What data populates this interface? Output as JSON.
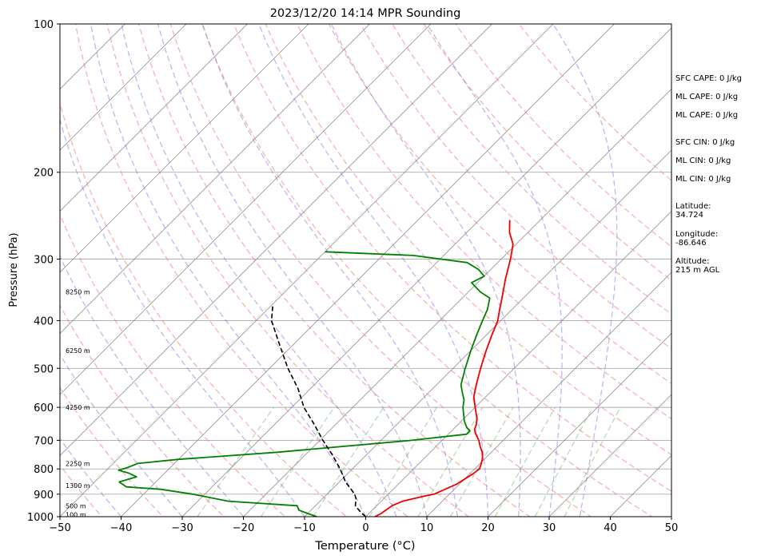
{
  "chart_data": {
    "type": "skew-t",
    "title": "2023/12/20 14:14 MPR Sounding",
    "xlabel": "Temperature (°C)",
    "ylabel": "Pressure (hPa)",
    "xlim": [
      -50,
      50
    ],
    "ylim": [
      1000,
      100
    ],
    "y_scale": "log",
    "grid": true,
    "x_ticks": [
      "−50",
      "−40",
      "−30",
      "−20",
      "−10",
      "0",
      "10",
      "20",
      "30",
      "40",
      "50"
    ],
    "y_ticks": [
      "100",
      "200",
      "300",
      "400",
      "500",
      "600",
      "700",
      "800",
      "900",
      "1000"
    ],
    "height_labels": [
      {
        "p": 350,
        "text": "8250 m"
      },
      {
        "p": 460,
        "text": "6250 m"
      },
      {
        "p": 600,
        "text": "4250 m"
      },
      {
        "p": 780,
        "text": "2250 m"
      },
      {
        "p": 865,
        "text": "1300 m"
      },
      {
        "p": 950,
        "text": "500 m"
      },
      {
        "p": 990,
        "text": "100 m"
      }
    ],
    "series": [
      {
        "kind": "temperature",
        "color": "#ee0000",
        "points": [
          [
            1000,
            1.5
          ],
          [
            985,
            2
          ],
          [
            950,
            2.5
          ],
          [
            930,
            3.5
          ],
          [
            910,
            6
          ],
          [
            900,
            7.5
          ],
          [
            880,
            8.5
          ],
          [
            860,
            9.5
          ],
          [
            840,
            10
          ],
          [
            820,
            10.5
          ],
          [
            800,
            10.8
          ],
          [
            780,
            10.2
          ],
          [
            760,
            9.5
          ],
          [
            740,
            8.5
          ],
          [
            720,
            7.2
          ],
          [
            700,
            6
          ],
          [
            680,
            4.5
          ],
          [
            665,
            3.5
          ],
          [
            650,
            3
          ],
          [
            630,
            2
          ],
          [
            600,
            0
          ],
          [
            570,
            -2
          ],
          [
            540,
            -3.5
          ],
          [
            500,
            -5.5
          ],
          [
            460,
            -7.5
          ],
          [
            430,
            -9
          ],
          [
            400,
            -10.5
          ],
          [
            380,
            -12
          ],
          [
            360,
            -13.5
          ],
          [
            330,
            -16
          ],
          [
            300,
            -18.5
          ],
          [
            280,
            -20.5
          ],
          [
            265,
            -23
          ],
          [
            250,
            -25
          ]
        ]
      },
      {
        "kind": "dewpoint",
        "color": "#008000",
        "points": [
          [
            1000,
            -8
          ],
          [
            985,
            -10
          ],
          [
            970,
            -12
          ],
          [
            950,
            -13
          ],
          [
            930,
            -25
          ],
          [
            900,
            -32
          ],
          [
            880,
            -38
          ],
          [
            870,
            -44
          ],
          [
            850,
            -46
          ],
          [
            830,
            -44
          ],
          [
            815,
            -46
          ],
          [
            805,
            -48
          ],
          [
            795,
            -47
          ],
          [
            780,
            -46
          ],
          [
            765,
            -40
          ],
          [
            740,
            -25
          ],
          [
            700,
            -5
          ],
          [
            680,
            3
          ],
          [
            670,
            3
          ],
          [
            660,
            2
          ],
          [
            640,
            0.5
          ],
          [
            600,
            -2
          ],
          [
            580,
            -3
          ],
          [
            560,
            -4.5
          ],
          [
            540,
            -6
          ],
          [
            500,
            -8
          ],
          [
            460,
            -10
          ],
          [
            430,
            -11.5
          ],
          [
            400,
            -13
          ],
          [
            380,
            -14
          ],
          [
            360,
            -15.5
          ],
          [
            350,
            -18
          ],
          [
            335,
            -21
          ],
          [
            325,
            -20
          ],
          [
            315,
            -22
          ],
          [
            305,
            -25
          ],
          [
            295,
            -35
          ],
          [
            290,
            -50
          ]
        ]
      },
      {
        "kind": "parcel",
        "color": "#000000",
        "points": [
          [
            1000,
            0
          ],
          [
            980,
            -1.5
          ],
          [
            950,
            -3.5
          ],
          [
            920,
            -4.5
          ],
          [
            900,
            -5.5
          ],
          [
            850,
            -9
          ],
          [
            800,
            -12
          ],
          [
            750,
            -15.5
          ],
          [
            700,
            -19.5
          ],
          [
            650,
            -23.5
          ],
          [
            600,
            -28
          ],
          [
            550,
            -32
          ],
          [
            500,
            -37
          ],
          [
            450,
            -42
          ],
          [
            400,
            -47.5
          ],
          [
            370,
            -50
          ]
        ]
      }
    ],
    "isotherms_C": [
      -120,
      -110,
      -100,
      -90,
      -80,
      -70,
      -60,
      -50,
      -40,
      -30,
      -20,
      -10,
      0,
      10,
      20,
      30,
      40,
      50
    ],
    "dry_adiabats_theta_K": [
      230,
      240,
      250,
      260,
      270,
      280,
      290,
      300,
      310,
      320,
      330,
      340,
      350,
      360,
      370,
      380,
      390,
      400,
      420
    ],
    "moist_adiabats_C": [
      -40,
      -30,
      -20,
      -10,
      0,
      5,
      10,
      15,
      20,
      25,
      30,
      35
    ],
    "mixing_ratio_lines_gkg": [
      0.4,
      1,
      2,
      4,
      7,
      10,
      16,
      24,
      32
    ],
    "colors": {
      "dry_adiabat": "#f08080",
      "moist_adiabat": "#8070e0",
      "mixing_ratio": "#60b060",
      "isotherm": "#808080",
      "grid": "#aaaaaa"
    },
    "annotations": {
      "sfc_cape": "SFC CAPE: 0 J/kg",
      "ml_cape_1": "ML CAPE: 0 J/kg",
      "ml_cape_2": "ML CAPE: 0 J/kg",
      "sfc_cin": "SFC CIN: 0 J/kg",
      "ml_cin_1": "ML CIN: 0 J/kg",
      "ml_cin_2": "ML CIN: 0 J/kg",
      "latitude_label": "Latitude:",
      "latitude": "34.724",
      "longitude_label": "Longitude:",
      "longitude": "-86.646",
      "altitude_label": "Altitude:",
      "altitude": "215 m AGL"
    }
  }
}
